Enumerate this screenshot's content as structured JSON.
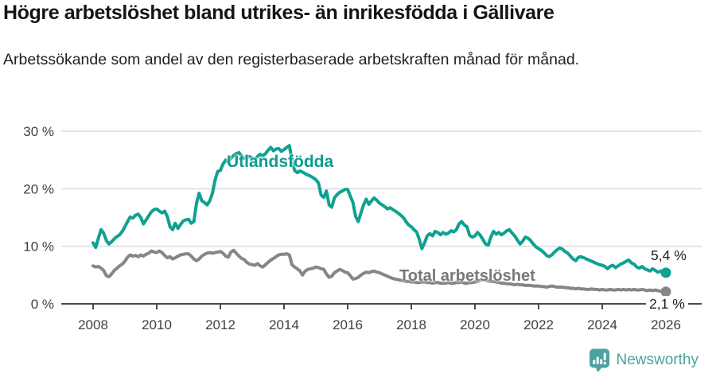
{
  "header": {
    "title": "Högre arbetslöshet bland utrikes- än inrikesfödda i Gällivare",
    "subtitle": "Arbetssökande som andel av den registerbaserade arbetskraften månad för månad."
  },
  "footer": {
    "brand": "Newsworthy",
    "logo_icon": "bar-chart-speech-bubble-icon",
    "brand_color": "#4BA3A1"
  },
  "chart_data": {
    "type": "line",
    "title": "Högre arbetslöshet bland utrikes- än inrikesfödda i Gällivare",
    "subtitle": "Arbetssökande som andel av den registerbaserade arbetskraften månad för månad.",
    "x_unit": "month",
    "x_start_year": 2008,
    "x_ticks": [
      2008,
      2010,
      2012,
      2014,
      2016,
      2018,
      2020,
      2022,
      2024,
      2026
    ],
    "x_tick_labels": [
      "2008",
      "2010",
      "2012",
      "2014",
      "2016",
      "2018",
      "2020",
      "2022",
      "2024",
      "2026"
    ],
    "y_ticks": [
      0,
      10,
      20,
      30
    ],
    "y_tick_labels": [
      "0 %",
      "10 %",
      "20 %",
      "30 %"
    ],
    "ylim": [
      0,
      31
    ],
    "grid": "horizontal",
    "legend_position": "inline-labels",
    "series": [
      {
        "name": "Utlandsfödda",
        "color": "#0FA191",
        "end_label": "5,4 %",
        "end_value": 5.4,
        "values": [
          10.6,
          9.8,
          11.4,
          12.9,
          12.3,
          11.0,
          10.4,
          10.8,
          11.3,
          11.7,
          12.0,
          12.6,
          13.4,
          14.3,
          15.1,
          14.9,
          15.4,
          15.6,
          15.0,
          13.9,
          14.6,
          15.3,
          16.0,
          16.4,
          16.5,
          16.1,
          15.8,
          16.1,
          15.2,
          13.4,
          12.9,
          14.0,
          13.1,
          13.8,
          14.4,
          14.6,
          14.7,
          14.0,
          14.3,
          17.5,
          19.2,
          17.9,
          17.6,
          17.2,
          17.9,
          19.2,
          21.5,
          23.0,
          23.2,
          24.3,
          25.0,
          24.6,
          25.3,
          25.8,
          26.1,
          26.3,
          25.7,
          25.3,
          25.5,
          25.6,
          25.3,
          25.1,
          25.6,
          26.0,
          25.7,
          26.1,
          26.7,
          27.2,
          26.6,
          26.9,
          27.0,
          26.5,
          26.8,
          27.2,
          27.5,
          25.0,
          23.2,
          22.8,
          23.1,
          22.9,
          22.6,
          22.4,
          22.2,
          21.9,
          21.6,
          21.0,
          18.9,
          18.5,
          19.6,
          17.2,
          16.8,
          18.4,
          19.0,
          19.4,
          19.6,
          19.9,
          19.9,
          18.7,
          17.6,
          15.2,
          14.3,
          15.8,
          17.2,
          18.2,
          17.3,
          17.9,
          18.4,
          18.0,
          17.5,
          17.2,
          16.9,
          16.5,
          16.7,
          16.4,
          16.1,
          15.8,
          15.4,
          15.0,
          14.3,
          13.7,
          13.4,
          12.9,
          12.5,
          11.2,
          9.6,
          10.6,
          11.8,
          12.2,
          11.8,
          12.6,
          12.4,
          12.0,
          12.4,
          12.1,
          12.3,
          12.7,
          12.5,
          12.9,
          13.9,
          14.3,
          13.7,
          13.4,
          11.9,
          11.6,
          11.8,
          12.4,
          11.9,
          11.2,
          10.4,
          10.2,
          11.6,
          12.6,
          12.1,
          12.4,
          12.0,
          12.3,
          12.7,
          12.9,
          12.3,
          11.8,
          11.1,
          10.4,
          10.9,
          11.6,
          11.4,
          11.0,
          10.4,
          9.9,
          9.6,
          9.3,
          8.9,
          8.4,
          8.2,
          8.5,
          9.0,
          9.4,
          9.7,
          9.5,
          9.1,
          8.8,
          8.3,
          7.8,
          7.5,
          8.1,
          8.2,
          8.0,
          7.8,
          7.6,
          7.4,
          7.2,
          7.0,
          6.8,
          6.7,
          6.5,
          6.1,
          6.5,
          6.7,
          6.3,
          6.6,
          6.9,
          7.1,
          7.4,
          7.6,
          7.1,
          6.9,
          6.4,
          6.2,
          6.5,
          6.1,
          5.9,
          5.7,
          6.1,
          5.8,
          5.5,
          5.7,
          5.3,
          5.4
        ]
      },
      {
        "name": "Total arbetslöshet",
        "color": "#85858A",
        "end_label": "2,1 %",
        "end_value": 2.1,
        "values": [
          6.6,
          6.4,
          6.5,
          6.2,
          5.8,
          4.9,
          4.7,
          5.2,
          5.8,
          6.2,
          6.6,
          6.9,
          7.4,
          8.1,
          8.5,
          8.3,
          8.4,
          8.2,
          8.5,
          8.3,
          8.6,
          8.8,
          9.2,
          9.0,
          8.9,
          9.2,
          8.9,
          8.4,
          8.0,
          8.2,
          7.8,
          8.0,
          8.3,
          8.5,
          8.6,
          8.7,
          8.7,
          8.3,
          7.8,
          7.5,
          7.8,
          8.3,
          8.6,
          8.8,
          8.9,
          8.8,
          8.9,
          9.0,
          9.1,
          8.8,
          8.3,
          8.1,
          9.0,
          9.3,
          8.8,
          8.3,
          7.9,
          7.7,
          7.2,
          6.9,
          6.8,
          6.7,
          7.0,
          6.6,
          6.4,
          6.8,
          7.2,
          7.6,
          7.9,
          8.2,
          8.5,
          8.6,
          8.6,
          8.7,
          8.5,
          6.8,
          6.4,
          6.1,
          5.7,
          5.0,
          5.7,
          6.0,
          6.1,
          6.2,
          6.4,
          6.3,
          6.1,
          6.0,
          5.2,
          4.6,
          4.8,
          5.4,
          5.7,
          6.0,
          5.8,
          5.5,
          5.4,
          4.9,
          4.3,
          4.4,
          4.6,
          5.0,
          5.3,
          5.5,
          5.4,
          5.6,
          5.7,
          5.5,
          5.4,
          5.2,
          5.0,
          4.8,
          4.6,
          4.4,
          4.3,
          4.2,
          4.1,
          4.0,
          3.9,
          3.9,
          3.8,
          3.8,
          3.7,
          3.7,
          3.8,
          3.8,
          3.7,
          3.7,
          3.6,
          3.7,
          3.7,
          3.6,
          3.6,
          3.6,
          3.7,
          3.6,
          3.6,
          3.7,
          3.7,
          3.8,
          3.6,
          3.6,
          3.7,
          3.7,
          3.8,
          3.9,
          4.1,
          4.2,
          4.1,
          4.0,
          3.9,
          3.9,
          3.8,
          3.7,
          3.6,
          3.6,
          3.5,
          3.5,
          3.4,
          3.3,
          3.4,
          3.3,
          3.3,
          3.2,
          3.2,
          3.2,
          3.1,
          3.1,
          3.1,
          3.0,
          3.0,
          2.9,
          3.0,
          3.1,
          3.0,
          2.9,
          2.9,
          2.9,
          2.8,
          2.8,
          2.7,
          2.7,
          2.6,
          2.7,
          2.6,
          2.6,
          2.5,
          2.5,
          2.6,
          2.5,
          2.5,
          2.4,
          2.5,
          2.4,
          2.4,
          2.5,
          2.4,
          2.4,
          2.5,
          2.4,
          2.5,
          2.4,
          2.5,
          2.4,
          2.5,
          2.4,
          2.4,
          2.5,
          2.4,
          2.3,
          2.4,
          2.3,
          2.4,
          2.3,
          2.2,
          2.2,
          2.1
        ]
      }
    ]
  }
}
